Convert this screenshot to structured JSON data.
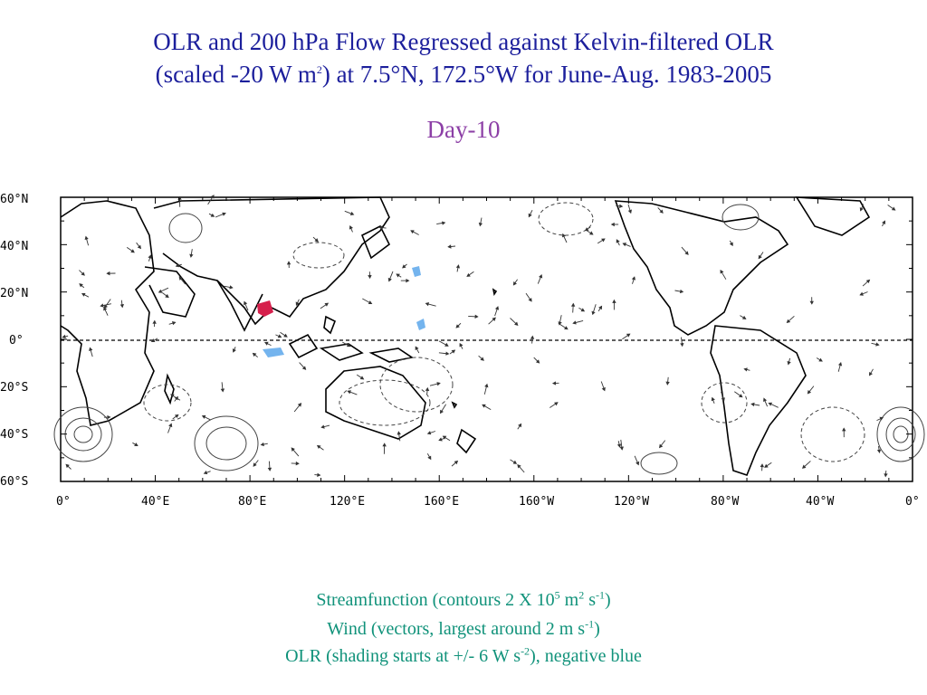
{
  "header": {
    "title_line1": "OLR and 200 hPa Flow Regressed against Kelvin-filtered OLR",
    "title_line2_a": "(scaled -20 W m",
    "title_line2_sup": "2",
    "title_line2_b": ") at 7.5°N, 172.5°W for June-Aug. 1983-2005",
    "subtitle": "Day-10"
  },
  "map": {
    "lat_labels": [
      "60°N",
      "40°N",
      "20°N",
      "0°",
      "20°S",
      "40°S",
      "60°S"
    ],
    "lon_labels": [
      "0°",
      "40°E",
      "80°E",
      "120°E",
      "160°E",
      "160°W",
      "120°W",
      "80°W",
      "40°W",
      "0°"
    ],
    "equator_line": "dashed",
    "colors": {
      "positive_olr": "#d6204c",
      "negative_olr": "#74b4ee",
      "coast": "#000000"
    }
  },
  "caption": {
    "line1_a": "Streamfunction (contours 2 X 10",
    "line1_sup1": "5",
    "line1_b": " m",
    "line1_sup2": "2",
    "line1_c": " s",
    "line1_sup3": "-1",
    "line1_d": ")",
    "line2_a": "Wind (vectors, largest around 2 m s",
    "line2_sup": "-1",
    "line2_b": ")",
    "line3_a": "OLR (shading starts at +/- 6 W s",
    "line3_sup": "-2",
    "line3_b": "), negative blue"
  }
}
